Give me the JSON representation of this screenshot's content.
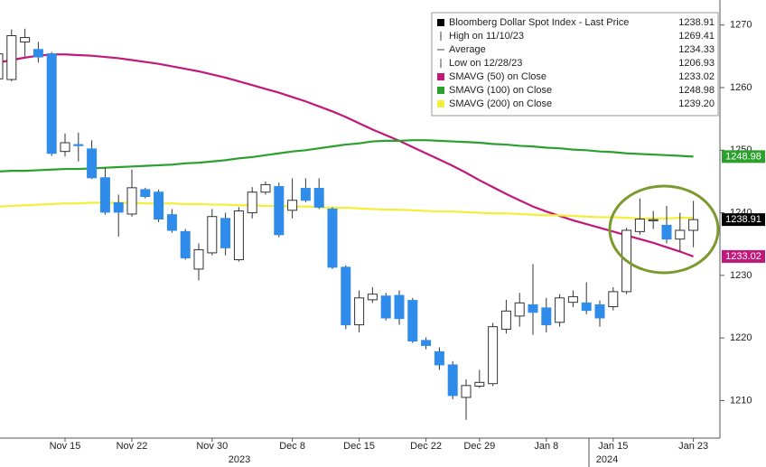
{
  "chart_data": {
    "type": "candlestick",
    "categories": [
      null,
      null,
      null,
      null,
      null,
      "Nov 15",
      null,
      null,
      null,
      null,
      "Nov 22",
      null,
      null,
      null,
      null,
      null,
      "Nov 30",
      null,
      null,
      null,
      null,
      null,
      "Dec 8",
      null,
      null,
      null,
      null,
      "Dec 15",
      null,
      null,
      null,
      null,
      "Dec 22",
      null,
      null,
      null,
      "Dec 29",
      null,
      null,
      null,
      null,
      "Jan 8",
      null,
      null,
      null,
      null,
      "Jan 15",
      null,
      null,
      null,
      null,
      null,
      "Jan 23"
    ],
    "x_groups": [
      "2023",
      "2024"
    ],
    "open": [
      1261.4,
      1261.3,
      1267.3,
      1266.1,
      1265.4,
      1249.8,
      1250.9,
      1250.2,
      1245.6,
      1241.6,
      1239.8,
      1243.7,
      1243.3,
      1239.7,
      1237.0,
      1231.0,
      1233.6,
      1239.1,
      1232.5,
      1240.0,
      1243.3,
      1244.2,
      1240.4,
      1243.9,
      1243.9,
      1240.6,
      1231.3,
      1222.1,
      1226.1,
      1226.7,
      1226.8,
      1226.0,
      1219.6,
      1217.8,
      1215.7,
      1210.5,
      1212.3,
      1212.7,
      1221.4,
      1223.5,
      1225.3,
      1224.8,
      1222.5,
      1225.7,
      1225.6,
      1225.3,
      1225.0,
      1227.4,
      1237.0,
      1238.8,
      1238.0,
      1235.8,
      1237.2
    ],
    "high": [
      1266.0,
      1269.3,
      1269.41,
      1267.3,
      1265.7,
      1252.7,
      1252.8,
      1251.6,
      1247.2,
      1242.9,
      1246.9,
      1244.0,
      1243.7,
      1240.6,
      1237.4,
      1235.1,
      1240.6,
      1240.0,
      1240.9,
      1244.1,
      1245.0,
      1244.8,
      1245.5,
      1245.5,
      1245.5,
      1240.9,
      1231.6,
      1227.6,
      1228.1,
      1227.2,
      1227.6,
      1226.4,
      1220.1,
      1218.5,
      1216.3,
      1213.4,
      1214.9,
      1222.4,
      1226.1,
      1227.2,
      1231.8,
      1226.4,
      1227.0,
      1227.6,
      1228.9,
      1226.0,
      1228.1,
      1237.6,
      1242.3,
      1240.3,
      1241.1,
      1240.0,
      1241.9
    ],
    "low": [
      1261.0,
      1261.0,
      1265.0,
      1264.0,
      1249.1,
      1249.0,
      1248.2,
      1245.4,
      1239.7,
      1236.2,
      1239.4,
      1242.3,
      1238.5,
      1236.8,
      1232.5,
      1229.2,
      1233.2,
      1233.2,
      1232.2,
      1239.1,
      1242.9,
      1236.1,
      1239.1,
      1241.7,
      1240.6,
      1231.0,
      1221.4,
      1220.9,
      1225.6,
      1222.8,
      1222.1,
      1219.2,
      1218.2,
      1214.9,
      1210.2,
      1206.93,
      1212.0,
      1212.3,
      1220.7,
      1221.8,
      1220.5,
      1220.9,
      1221.8,
      1224.9,
      1223.8,
      1221.8,
      1224.4,
      1227.0,
      1236.5,
      1237.4,
      1235.1,
      1233.8,
      1234.5
    ],
    "close": [
      1265.4,
      1268.3,
      1268.0,
      1264.9,
      1249.5,
      1251.2,
      1250.8,
      1245.6,
      1240.1,
      1240.1,
      1244.0,
      1242.6,
      1239.0,
      1237.2,
      1232.8,
      1234.1,
      1239.4,
      1234.4,
      1240.3,
      1243.3,
      1244.5,
      1236.5,
      1242.0,
      1242.0,
      1240.9,
      1231.3,
      1222.1,
      1226.4,
      1227.0,
      1223.2,
      1223.1,
      1219.5,
      1218.8,
      1215.7,
      1210.8,
      1212.4,
      1212.9,
      1221.8,
      1224.3,
      1225.6,
      1224.1,
      1222.1,
      1226.4,
      1226.6,
      1224.4,
      1223.2,
      1227.4,
      1237.2,
      1239.0,
      1238.9,
      1235.8,
      1237.2,
      1238.91
    ],
    "up_color": "#ffffff",
    "down_color": "#2f8ceb",
    "summary": [
      {
        "label": "Bloomberg Dollar Spot Index - Last Price",
        "value": 1238.91
      },
      {
        "label": "High on 11/10/23",
        "value": 1269.41
      },
      {
        "label": "Average",
        "value": 1234.33
      },
      {
        "label": "Low on 12/28/23",
        "value": 1206.93
      }
    ],
    "series": [
      {
        "name": "SMAVG (50)  on Close",
        "color": "#c2187a",
        "legend_value": 1233.02,
        "values": [
          1264,
          1264.4,
          1264.8,
          1265.1,
          1265.3,
          1265.3,
          1265.2,
          1265.1,
          1264.9,
          1264.7,
          1264.4,
          1264.1,
          1263.8,
          1263.4,
          1263,
          1262.6,
          1262.1,
          1261.6,
          1261,
          1260.4,
          1259.8,
          1259.2,
          1258.5,
          1257.8,
          1257,
          1256.2,
          1255.3,
          1254.3,
          1253.3,
          1252.4,
          1251.5,
          1250.5,
          1249.5,
          1248.5,
          1247.5,
          1246.4,
          1245.2,
          1244.1,
          1243,
          1242,
          1241,
          1240.2,
          1239.5,
          1238.8,
          1238.2,
          1237.6,
          1237,
          1236.4,
          1235.8,
          1235.2,
          1234.5,
          1233.8,
          1233.02
        ]
      },
      {
        "name": "SMAVG (100)  on Close",
        "color": "#2ca02c",
        "legend_value": 1248.98,
        "values": [
          1246.6,
          1246.7,
          1246.7,
          1246.8,
          1246.9,
          1247,
          1247,
          1247.1,
          1247.2,
          1247.3,
          1247.4,
          1247.5,
          1247.6,
          1247.7,
          1247.9,
          1248,
          1248.2,
          1248.4,
          1248.7,
          1248.9,
          1249.2,
          1249.5,
          1249.8,
          1250,
          1250.3,
          1250.6,
          1250.9,
          1251.1,
          1251.4,
          1251.5,
          1251.5,
          1251.6,
          1251.6,
          1251.5,
          1251.4,
          1251.3,
          1251.2,
          1251,
          1250.9,
          1250.7,
          1250.6,
          1250.4,
          1250.3,
          1250.1,
          1250,
          1249.8,
          1249.7,
          1249.5,
          1249.4,
          1249.3,
          1249.2,
          1249.1,
          1248.98
        ]
      },
      {
        "name": "SMAVG (200)  on Close",
        "color": "#f2ef3a",
        "legend_value": {
          "value": 1239.2,
          "label": "1239.20"
        },
        "values": [
          1241,
          1241.1,
          1241.2,
          1241.3,
          1241.4,
          1241.5,
          1241.5,
          1241.6,
          1241.6,
          1241.6,
          1241.6,
          1241.5,
          1241.5,
          1241.5,
          1241.4,
          1241.4,
          1241.3,
          1241.3,
          1241.2,
          1241.2,
          1241.1,
          1241.1,
          1241,
          1241,
          1240.9,
          1240.8,
          1240.8,
          1240.7,
          1240.6,
          1240.5,
          1240.5,
          1240.4,
          1240.3,
          1240.2,
          1240.2,
          1240.1,
          1240,
          1239.9,
          1239.9,
          1239.8,
          1239.7,
          1239.6,
          1239.6,
          1239.5,
          1239.4,
          1239.3,
          1239.3,
          1239.2,
          1239.1,
          1239.1,
          1239.1,
          1239.2,
          1239.2
        ]
      }
    ],
    "ylim": [
      1204,
      1274
    ],
    "yticks": [
      1210,
      1220,
      1230,
      1240,
      1250,
      1260,
      1270
    ],
    "grid": false
  }
}
